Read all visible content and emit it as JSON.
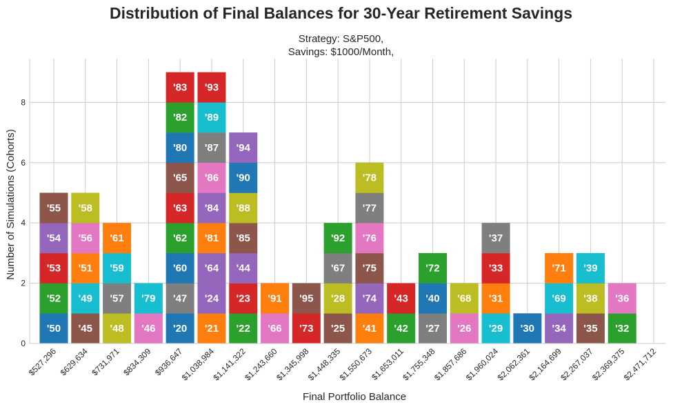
{
  "chart_data": {
    "type": "bar",
    "stacked": true,
    "title": "Distribution of Final Balances for 30-Year Retirement Savings",
    "subtitle": [
      "Strategy: S&P500,",
      "Savings: $1000/Month,"
    ],
    "xlabel": "Final Portfolio Balance",
    "ylabel": "Number of Simulations (Cohorts)",
    "categories": [
      "$527,296",
      "$629,634",
      "$731,971",
      "$834,309",
      "$936,647",
      "$1,038,984",
      "$1,141,322",
      "$1,243,660",
      "$1,345,998",
      "$1,448,335",
      "$1,550,673",
      "$1,653,011",
      "$1,755,348",
      "$1,857,686",
      "$1,960,024",
      "$2,062,361",
      "$2,164,699",
      "$2,267,037",
      "$2,369,375",
      "$2,471,712"
    ],
    "bins": [
      [
        "'50",
        "'52",
        "'53",
        "'54",
        "'55"
      ],
      [
        "'45",
        "'49",
        "'51",
        "'56",
        "'58"
      ],
      [
        "'48",
        "'57",
        "'59",
        "'61"
      ],
      [
        "'46",
        "'79"
      ],
      [
        "'20",
        "'47",
        "'60",
        "'62",
        "'63",
        "'65",
        "'80",
        "'82",
        "'83"
      ],
      [
        "'21",
        "'24",
        "'64",
        "'81",
        "'84",
        "'86",
        "'87",
        "'89",
        "'93"
      ],
      [
        "'22",
        "'23",
        "'44",
        "'85",
        "'88",
        "'90",
        "'94"
      ],
      [
        "'66",
        "'91"
      ],
      [
        "'73",
        "'95"
      ],
      [
        "'25",
        "'28",
        "'67",
        "'92"
      ],
      [
        "'41",
        "'74",
        "'75",
        "'76",
        "'77",
        "'78"
      ],
      [
        "'42",
        "'43"
      ],
      [
        "'27",
        "'40",
        "'72"
      ],
      [
        "'26",
        "'68"
      ],
      [
        "'29",
        "'31",
        "'33",
        "'37"
      ],
      [
        "'30"
      ],
      [
        "'34",
        "'69",
        "'71"
      ],
      [
        "'35",
        "'38",
        "'39"
      ],
      [
        "'32",
        "'36"
      ],
      []
    ],
    "values": [
      5,
      5,
      4,
      2,
      9,
      9,
      7,
      2,
      2,
      4,
      6,
      2,
      3,
      2,
      4,
      1,
      3,
      3,
      2,
      0
    ],
    "yticks": [
      "0",
      "2",
      "4",
      "6",
      "8"
    ],
    "ylim": [
      0,
      9.45
    ],
    "grid": true,
    "palette_by_last_digit": [
      "#1f77b4",
      "#ff7f0e",
      "#2ca02c",
      "#d62728",
      "#9467bd",
      "#8c564b",
      "#e377c2",
      "#7f7f7f",
      "#bcbd22",
      "#17becf"
    ]
  }
}
